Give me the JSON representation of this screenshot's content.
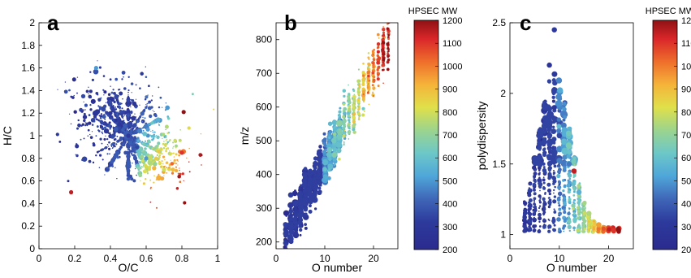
{
  "figure": {
    "description_note": ""
  },
  "panels": [
    {
      "letter": "a"
    },
    {
      "letter": "b"
    },
    {
      "letter": "c"
    }
  ],
  "colorbar": {
    "title": "HPSEC MW",
    "ticks": [
      "1200",
      "1100",
      "1000",
      "900",
      "800",
      "700",
      "600",
      "500",
      "400",
      "300",
      "200"
    ],
    "min": 200,
    "max": 1200
  },
  "chart_data": [
    {
      "type": "scatter",
      "panel": "a",
      "title": "",
      "xlabel": "O/C",
      "ylabel": "H/C",
      "xlim": [
        0,
        1
      ],
      "ylim": [
        0,
        2
      ],
      "xticks": [
        "0",
        "0.2",
        "0.4",
        "0.6",
        "0.8",
        "1"
      ],
      "yticks": [
        "0",
        "0.2",
        "0.4",
        "0.6",
        "0.8",
        "1",
        "1.2",
        "1.4",
        "1.6",
        "1.8",
        "2"
      ],
      "color_variable": "HPSEC MW",
      "points_note": "van Krevelen diagram; dense diagonal clusters centered near O/C 0.5, H/C 1.0; high-MW points at O/C 0.6-0.9, H/C 0.6-0.9",
      "sample_points": [
        {
          "x": 0.5,
          "y": 1.0,
          "mw": 300
        },
        {
          "x": 0.4,
          "y": 1.2,
          "mw": 280
        },
        {
          "x": 0.45,
          "y": 1.1,
          "mw": 300
        },
        {
          "x": 0.55,
          "y": 0.9,
          "mw": 350
        },
        {
          "x": 0.6,
          "y": 0.8,
          "mw": 500
        },
        {
          "x": 0.65,
          "y": 0.75,
          "mw": 700
        },
        {
          "x": 0.7,
          "y": 0.7,
          "mw": 800
        },
        {
          "x": 0.75,
          "y": 0.7,
          "mw": 900
        },
        {
          "x": 0.8,
          "y": 0.85,
          "mw": 1100
        },
        {
          "x": 0.32,
          "y": 1.6,
          "mw": 500
        },
        {
          "x": 0.18,
          "y": 0.5,
          "mw": 1150
        },
        {
          "x": 0.81,
          "y": 1.21,
          "mw": 1200
        }
      ]
    },
    {
      "type": "scatter",
      "panel": "b",
      "title": "",
      "xlabel": "O number",
      "ylabel": "m/z",
      "xlim": [
        0,
        25
      ],
      "ylim": [
        180,
        850
      ],
      "xticks": [
        "0",
        "10",
        "20"
      ],
      "yticks": [
        "200",
        "300",
        "400",
        "500",
        "600",
        "700",
        "800"
      ],
      "color_variable": "HPSEC MW",
      "points_note": "m/z rises with O number; color increases from ~250 at low O to ~1100 at high O",
      "trend": {
        "x": [
          3,
          5,
          7,
          9,
          11,
          13,
          15,
          17,
          19,
          21,
          22
        ],
        "m/z": [
          220,
          260,
          300,
          350,
          410,
          470,
          530,
          590,
          650,
          720,
          760
        ]
      }
    },
    {
      "type": "scatter",
      "panel": "c",
      "title": "",
      "xlabel": "O number",
      "ylabel": "polydispersity",
      "xlim": [
        0,
        25
      ],
      "ylim": [
        0.9,
        2.5
      ],
      "xticks": [
        "0",
        "10",
        "20"
      ],
      "yticks": [
        "1",
        "1.5",
        "2",
        "2.5"
      ],
      "color_variable": "HPSEC MW",
      "points_note": "polydispersity highest (up to ~2.45) near O number 8-10, decreasing toward ~1.0 at high O number where MW is highest",
      "sample_points": [
        {
          "x": 9,
          "y": 2.45,
          "mw": 300
        },
        {
          "x": 8,
          "y": 2.2,
          "mw": 280
        },
        {
          "x": 9,
          "y": 1.9,
          "mw": 300
        },
        {
          "x": 10,
          "y": 1.7,
          "mw": 350
        },
        {
          "x": 12,
          "y": 1.5,
          "mw": 450
        },
        {
          "x": 13,
          "y": 1.45,
          "mw": 1150
        },
        {
          "x": 14,
          "y": 1.3,
          "mw": 550
        },
        {
          "x": 16,
          "y": 1.15,
          "mw": 750
        },
        {
          "x": 18,
          "y": 1.07,
          "mw": 950
        },
        {
          "x": 21,
          "y": 1.03,
          "mw": 1100
        }
      ]
    }
  ]
}
